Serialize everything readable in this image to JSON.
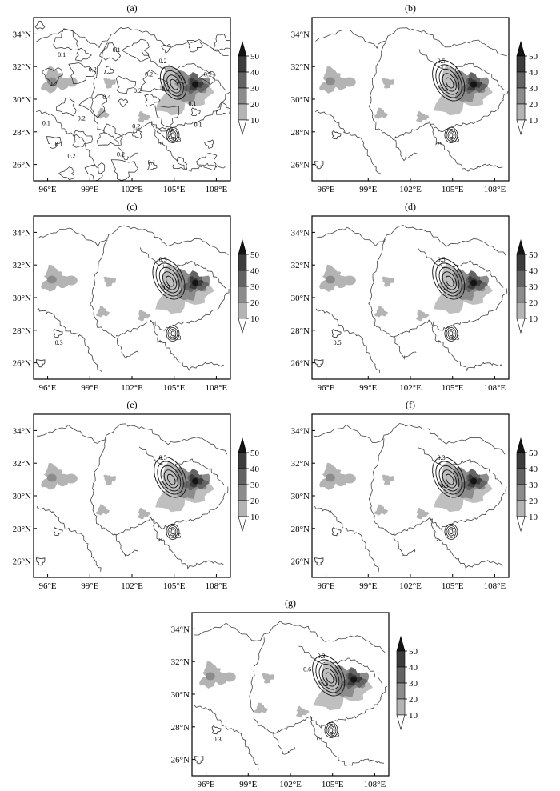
{
  "figure": {
    "axes": {
      "lon_ticks": [
        "96°E",
        "99°E",
        "102°E",
        "105°E",
        "108°E"
      ],
      "lat_ticks": [
        "26°N",
        "28°N",
        "30°N",
        "32°N",
        "34°N"
      ]
    },
    "colorbar": {
      "ticks": [
        "10",
        "20",
        "30",
        "40",
        "50"
      ],
      "colors": [
        "#ffffff",
        "#b4b4b4",
        "#8c8c8c",
        "#646464",
        "#3c3c3c",
        "#141414"
      ]
    }
  },
  "chart_data": [
    {
      "type": "heatmap",
      "label": "(a)",
      "xlim": [
        95,
        109
      ],
      "ylim": [
        25,
        35
      ],
      "shaded_max_centers": [
        {
          "lon": 106.5,
          "lat": 30.9,
          "value": 50
        },
        {
          "lon": 96.3,
          "lat": 31.1,
          "value": 20
        }
      ],
      "contour_labels": [
        "0.2",
        "0.2",
        "0.3",
        "0.1",
        "0.2",
        "0.1",
        "0.4",
        "0.2",
        "0.2",
        "0.1",
        "0.2",
        "0.2",
        "0.2",
        "0.1",
        "0.1",
        "0.2",
        "0.1",
        "0.2",
        "0.1",
        "0.2"
      ],
      "contour_centers": [
        {
          "lon": 105.0,
          "lat": 30.9,
          "value": 0.4
        },
        {
          "lon": 104.9,
          "lat": 27.8,
          "value": 0.2
        }
      ]
    },
    {
      "type": "heatmap",
      "label": "(b)",
      "xlim": [
        95,
        109
      ],
      "ylim": [
        25,
        35
      ],
      "shaded_max_centers": [
        {
          "lon": 106.5,
          "lat": 30.9,
          "value": 50
        },
        {
          "lon": 96.3,
          "lat": 31.1,
          "value": 20
        }
      ],
      "contour_labels": [
        "0.5",
        "1.5",
        "0.5"
      ],
      "contour_centers": [
        {
          "lon": 104.8,
          "lat": 31.0,
          "value": 1.5
        },
        {
          "lon": 104.9,
          "lat": 27.8,
          "value": 0.5
        }
      ]
    },
    {
      "type": "heatmap",
      "label": "(c)",
      "xlim": [
        95,
        109
      ],
      "ylim": [
        25,
        35
      ],
      "shaded_max_centers": [
        {
          "lon": 106.5,
          "lat": 30.9,
          "value": 50
        },
        {
          "lon": 96.3,
          "lat": 31.1,
          "value": 20
        }
      ],
      "contour_labels": [
        "0.3",
        "0.9",
        "0.3",
        "0.3"
      ],
      "contour_centers": [
        {
          "lon": 104.7,
          "lat": 31.0,
          "value": 0.9
        },
        {
          "lon": 104.9,
          "lat": 27.8,
          "value": 0.3
        }
      ]
    },
    {
      "type": "heatmap",
      "label": "(d)",
      "xlim": [
        95,
        109
      ],
      "ylim": [
        25,
        35
      ],
      "shaded_max_centers": [
        {
          "lon": 106.5,
          "lat": 30.9,
          "value": 50
        },
        {
          "lon": 96.3,
          "lat": 31.1,
          "value": 20
        }
      ],
      "contour_labels": [
        "0.5",
        "1.5",
        "0.5",
        "0.5"
      ],
      "contour_centers": [
        {
          "lon": 104.8,
          "lat": 31.0,
          "value": 1.5
        },
        {
          "lon": 104.9,
          "lat": 27.8,
          "value": 0.5
        }
      ]
    },
    {
      "type": "heatmap",
      "label": "(e)",
      "xlim": [
        95,
        109
      ],
      "ylim": [
        25,
        35
      ],
      "shaded_max_centers": [
        {
          "lon": 106.5,
          "lat": 30.9,
          "value": 50
        },
        {
          "lon": 96.3,
          "lat": 31.1,
          "value": 20
        }
      ],
      "contour_labels": [
        "0.5",
        "1",
        "0.5"
      ],
      "contour_centers": [
        {
          "lon": 104.8,
          "lat": 31.0,
          "value": 1
        },
        {
          "lon": 104.9,
          "lat": 27.8,
          "value": 0.5
        }
      ]
    },
    {
      "type": "heatmap",
      "label": "(f)",
      "xlim": [
        95,
        109
      ],
      "ylim": [
        25,
        35
      ],
      "shaded_max_centers": [
        {
          "lon": 106.5,
          "lat": 30.9,
          "value": 50
        },
        {
          "lon": 96.3,
          "lat": 31.1,
          "value": 20
        }
      ],
      "contour_labels": [
        "0.3",
        "0.3"
      ],
      "contour_centers": [
        {
          "lon": 104.8,
          "lat": 31.0,
          "value": 0.9
        },
        {
          "lon": 104.9,
          "lat": 27.8,
          "value": 0.3
        }
      ]
    },
    {
      "type": "heatmap",
      "label": "(g)",
      "xlim": [
        95,
        109
      ],
      "ylim": [
        25,
        35
      ],
      "shaded_max_centers": [
        {
          "lon": 106.5,
          "lat": 30.9,
          "value": 50
        },
        {
          "lon": 96.3,
          "lat": 31.1,
          "value": 20
        }
      ],
      "contour_labels": [
        "0.3",
        "1.2",
        "0.3",
        "0.3",
        "0.6"
      ],
      "contour_centers": [
        {
          "lon": 104.8,
          "lat": 31.0,
          "value": 1.2
        },
        {
          "lon": 104.9,
          "lat": 27.8,
          "value": 0.6
        }
      ]
    }
  ]
}
